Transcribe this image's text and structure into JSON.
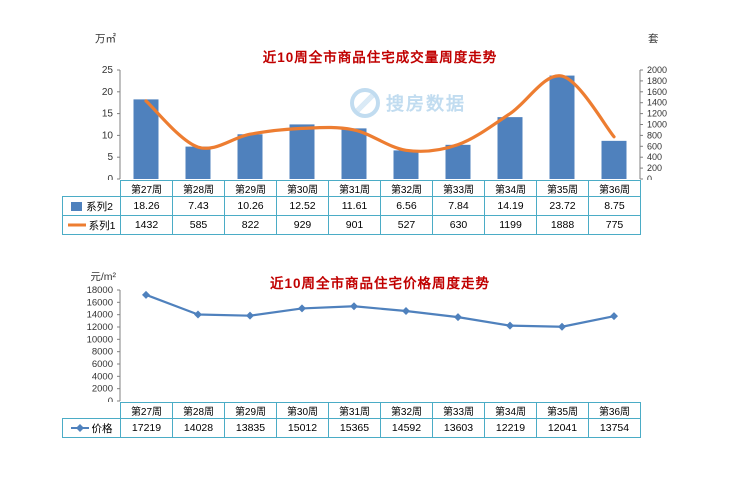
{
  "page": {
    "background": "#ffffff"
  },
  "watermark": {
    "text": "搜房数据",
    "color": "#8fc0e4"
  },
  "colors": {
    "bar_blue": "#4f81bd",
    "line_orange": "#ed7d31",
    "line_blue": "#4f81bd",
    "title_red": "#c00000",
    "table_border_teal": "#4bacc6"
  },
  "chart_data": [
    {
      "type": "bar",
      "title": "近10周全市商品住宅成交量周度走势",
      "title_color": "#c00000",
      "left_axis_label": "万㎡",
      "right_axis_label": "套",
      "categories": [
        "第27周",
        "第28周",
        "第29周",
        "第30周",
        "第31周",
        "第32周",
        "第33周",
        "第34周",
        "第35周",
        "第36周"
      ],
      "series": [
        {
          "name": "系列2",
          "type": "bar",
          "axis": "left",
          "color": "#4f81bd",
          "values": [
            18.26,
            7.43,
            10.26,
            12.52,
            11.61,
            6.56,
            7.84,
            14.19,
            23.72,
            8.75
          ]
        },
        {
          "name": "系列1",
          "type": "line",
          "axis": "right",
          "color": "#ed7d31",
          "smooth": true,
          "values": [
            1432,
            585,
            822,
            929,
            901,
            527,
            630,
            1199,
            1888,
            775
          ]
        }
      ],
      "left_axis": {
        "min": 0,
        "max": 25,
        "step": 5
      },
      "right_axis": {
        "min": 0,
        "max": 2000,
        "step": 200
      },
      "grid": false,
      "legend_position": "table-left",
      "table_border_color": "#4bacc6"
    },
    {
      "type": "line",
      "title": "近10周全市商品住宅价格周度走势",
      "title_color": "#c00000",
      "left_axis_label": "元/m²",
      "categories": [
        "第27周",
        "第28周",
        "第29周",
        "第30周",
        "第31周",
        "第32周",
        "第33周",
        "第34周",
        "第35周",
        "第36周"
      ],
      "series": [
        {
          "name": "价格",
          "type": "line",
          "axis": "left",
          "color": "#4f81bd",
          "marker": "diamond",
          "smooth": false,
          "values": [
            17219,
            14028,
            13835,
            15012,
            15365,
            14592,
            13603,
            12219,
            12041,
            13754
          ]
        }
      ],
      "left_axis": {
        "min": 0,
        "max": 18000,
        "step": 2000
      },
      "grid": false,
      "legend_position": "table-left",
      "table_border_color": "#4bacc6"
    }
  ]
}
